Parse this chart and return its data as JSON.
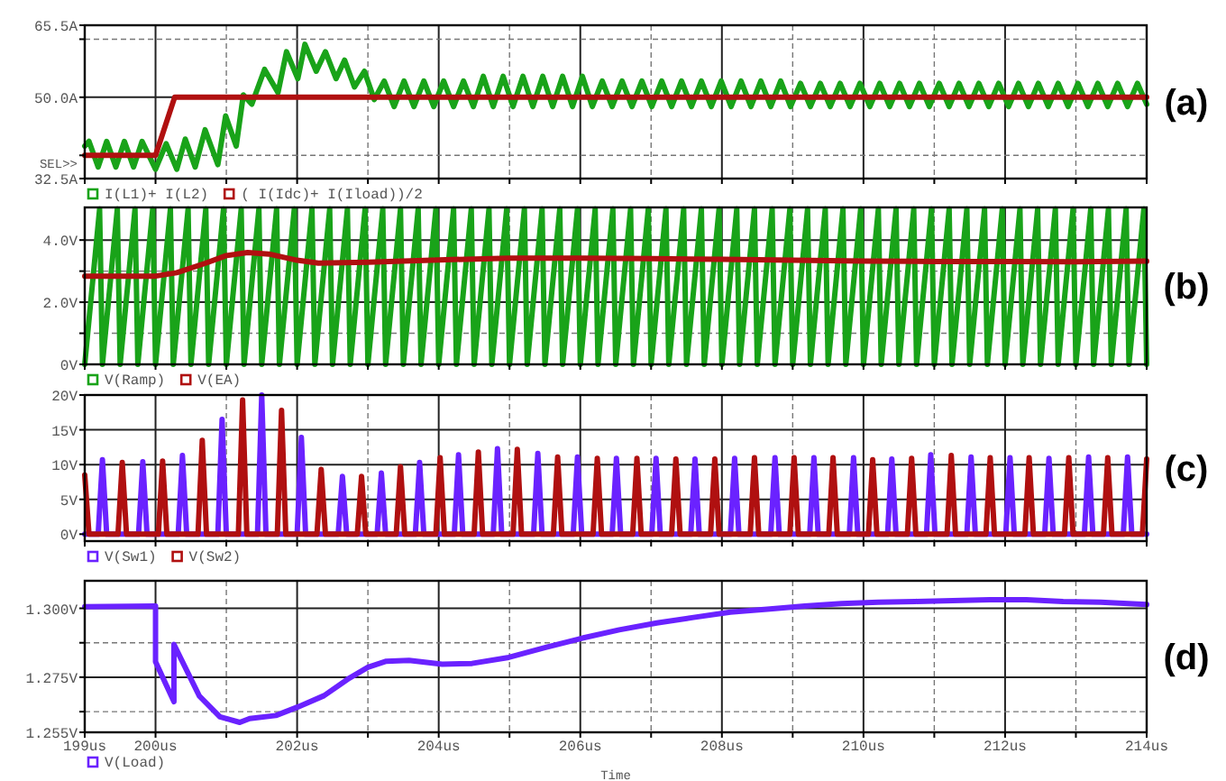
{
  "chart_data": [
    {
      "type": "line",
      "xlim": [
        199,
        214
      ],
      "ylim": [
        32.5,
        65.5
      ],
      "grid": true,
      "legend": "bottom",
      "tick_labels": "y",
      "xticks": [
        {
          "value": 199,
          "label": null
        },
        {
          "value": 200,
          "label": null
        },
        {
          "value": 201,
          "label": null
        },
        {
          "value": 202,
          "label": null
        },
        {
          "value": 203,
          "label": null
        },
        {
          "value": 204,
          "label": null
        },
        {
          "value": 205,
          "label": null
        },
        {
          "value": 206,
          "label": null
        },
        {
          "value": 207,
          "label": null
        },
        {
          "value": 208,
          "label": null
        },
        {
          "value": 209,
          "label": null
        },
        {
          "value": 210,
          "label": null
        },
        {
          "value": 211,
          "label": null
        },
        {
          "value": 212,
          "label": null
        },
        {
          "value": 213,
          "label": null
        },
        {
          "value": 214,
          "label": null
        }
      ],
      "yticks": [
        {
          "value": 32.5,
          "label": "32.5A"
        },
        {
          "value": 37.5,
          "label": null
        },
        {
          "value": 50,
          "label": "50.0A"
        },
        {
          "value": 62.5,
          "label": null
        },
        {
          "value": 65.5,
          "label": "65.5A"
        }
      ],
      "annotations": [
        "(a)",
        "SEL>>"
      ],
      "series": [
        {
          "name": "I(L1)+ I(L2)",
          "color": "#19a319",
          "x": [
            199,
            199.06,
            199.19,
            199.31,
            199.44,
            199.56,
            199.69,
            199.81,
            200,
            200.15,
            200.3,
            200.42,
            200.56,
            200.7,
            200.88,
            200.99,
            201.14,
            201.24,
            201.36,
            201.54,
            201.73,
            201.85,
            202.01,
            202.11,
            202.27,
            202.4,
            202.55,
            202.67,
            202.81,
            202.95,
            203.09,
            203.23,
            203.37,
            203.51,
            203.65,
            203.79,
            203.93,
            204.07,
            204.21,
            204.35,
            204.49,
            204.63,
            204.77,
            204.91,
            205.05,
            205.19,
            205.33,
            205.47,
            205.61,
            205.75,
            205.89,
            206.03,
            206.17,
            206.31,
            206.45,
            206.59,
            206.73,
            206.87,
            207.01,
            207.15,
            207.29,
            207.43,
            207.57,
            207.71,
            207.85,
            207.99,
            208.13,
            208.27,
            208.41,
            208.55,
            208.69,
            208.83,
            208.97,
            209.11,
            209.25,
            209.39,
            209.53,
            209.67,
            209.81,
            209.95,
            210.09,
            210.23,
            210.37,
            210.51,
            210.65,
            210.79,
            210.93,
            211.07,
            211.21,
            211.35,
            211.49,
            211.63,
            211.77,
            211.91,
            212.05,
            212.19,
            212.33,
            212.47,
            212.61,
            212.75,
            212.89,
            213.03,
            213.17,
            213.31,
            213.45,
            213.59,
            213.73,
            213.87,
            214
          ],
          "values": [
            39.5,
            40.5,
            35,
            40.5,
            35,
            40.5,
            35,
            40.5,
            34.5,
            40,
            34.5,
            41,
            35,
            43,
            35.5,
            46,
            39.5,
            50.5,
            48.5,
            56,
            51,
            59.8,
            54,
            61.4,
            55.6,
            59.8,
            54,
            58,
            52.2,
            55.6,
            49.5,
            53.5,
            48,
            53.5,
            48,
            53.5,
            48,
            53.5,
            48,
            53.5,
            48,
            54.5,
            48,
            54.5,
            48,
            54.5,
            48,
            54.5,
            48,
            54.5,
            48,
            54.5,
            48,
            53.5,
            48,
            53.5,
            48,
            53.5,
            48,
            53.5,
            48,
            53.5,
            48,
            53.5,
            48,
            53.5,
            48,
            53.5,
            48,
            53.5,
            48,
            53.5,
            48,
            53,
            48,
            53,
            48,
            53,
            48,
            53,
            48,
            53,
            48,
            53,
            48,
            53,
            48,
            53,
            48,
            53,
            48,
            53,
            48,
            53,
            48,
            53,
            48,
            53,
            48,
            53,
            48,
            53,
            48,
            53,
            48,
            53,
            48,
            53,
            48.5
          ]
        },
        {
          "name": "( I(Idc)+ I(Iload))/2",
          "color": "#b01010",
          "x": [
            199,
            200,
            200.27,
            214
          ],
          "values": [
            37.5,
            37.5,
            50,
            50
          ]
        }
      ]
    },
    {
      "type": "line",
      "xlim": [
        199,
        214
      ],
      "ylim": [
        0,
        5.05
      ],
      "grid": true,
      "legend": "bottom",
      "tick_labels": "y",
      "xticks": [
        {
          "value": 199,
          "label": null
        },
        {
          "value": 200,
          "label": null
        },
        {
          "value": 201,
          "label": null
        },
        {
          "value": 202,
          "label": null
        },
        {
          "value": 203,
          "label": null
        },
        {
          "value": 204,
          "label": null
        },
        {
          "value": 205,
          "label": null
        },
        {
          "value": 206,
          "label": null
        },
        {
          "value": 207,
          "label": null
        },
        {
          "value": 208,
          "label": null
        },
        {
          "value": 209,
          "label": null
        },
        {
          "value": 210,
          "label": null
        },
        {
          "value": 211,
          "label": null
        },
        {
          "value": 212,
          "label": null
        },
        {
          "value": 213,
          "label": null
        },
        {
          "value": 214,
          "label": null
        }
      ],
      "yticks": [
        {
          "value": 0,
          "label": "0V"
        },
        {
          "value": 1,
          "label": null
        },
        {
          "value": 2,
          "label": "2.0V"
        },
        {
          "value": 3,
          "label": null
        },
        {
          "value": 4,
          "label": "4.0V"
        }
      ],
      "annotations": [
        "(b)"
      ],
      "series": [
        {
          "name": "V(Ramp)",
          "color": "#19a319",
          "x": [
            199,
            199.21,
            199.25,
            199.46,
            199.5,
            199.71,
            199.75,
            199.96,
            200,
            200.21,
            200.25,
            200.46,
            200.5,
            200.71,
            200.75,
            200.96,
            201,
            201.21,
            201.25,
            201.46,
            201.5,
            201.71,
            201.75,
            201.96,
            202,
            202.21,
            202.25,
            202.46,
            202.5,
            202.71,
            202.75,
            202.96,
            203,
            203.21,
            203.25,
            203.46,
            203.5,
            203.71,
            203.75,
            203.96,
            204,
            204.21,
            204.25,
            204.46,
            204.5,
            204.71,
            204.75,
            204.96,
            205,
            205.21,
            205.25,
            205.46,
            205.5,
            205.71,
            205.75,
            205.96,
            206,
            206.21,
            206.25,
            206.46,
            206.5,
            206.71,
            206.75,
            206.96,
            207,
            207.21,
            207.25,
            207.46,
            207.5,
            207.71,
            207.75,
            207.96,
            208,
            208.21,
            208.25,
            208.46,
            208.5,
            208.71,
            208.75,
            208.96,
            209,
            209.21,
            209.25,
            209.46,
            209.5,
            209.71,
            209.75,
            209.96,
            210,
            210.21,
            210.25,
            210.46,
            210.5,
            210.71,
            210.75,
            210.96,
            211,
            211.21,
            211.25,
            211.46,
            211.5,
            211.71,
            211.75,
            211.96,
            212,
            212.21,
            212.25,
            212.46,
            212.5,
            212.71,
            212.75,
            212.96,
            213,
            213.21,
            213.25,
            213.46,
            213.5,
            213.71,
            213.75,
            213.96,
            214
          ],
          "values": [
            0,
            5,
            0,
            5,
            0,
            5,
            0,
            5,
            0,
            5,
            0,
            5,
            0,
            5,
            0,
            5,
            0,
            5,
            0,
            5,
            0,
            5,
            0,
            5,
            0,
            5,
            0,
            5,
            0,
            5,
            0,
            5,
            0,
            5,
            0,
            5,
            0,
            5,
            0,
            5,
            0,
            5,
            0,
            5,
            0,
            5,
            0,
            5,
            0,
            5,
            0,
            5,
            0,
            5,
            0,
            5,
            0,
            5,
            0,
            5,
            0,
            5,
            0,
            5,
            0,
            5,
            0,
            5,
            0,
            5,
            0,
            5,
            0,
            5,
            0,
            5,
            0,
            5,
            0,
            5,
            0,
            5,
            0,
            5,
            0,
            5,
            0,
            5,
            0,
            5,
            0,
            5,
            0,
            5,
            0,
            5,
            0,
            5,
            0,
            5,
            0,
            5,
            0,
            5,
            0,
            5,
            0,
            5,
            0,
            5,
            0,
            5,
            0,
            5,
            0,
            5,
            0,
            5,
            0,
            5,
            0
          ]
        },
        {
          "name": "V(EA)",
          "color": "#b01010",
          "x": [
            199,
            200,
            200.3,
            200.7,
            201,
            201.3,
            201.6,
            202,
            202.3,
            203,
            204,
            205,
            206,
            207,
            208,
            209,
            210,
            211,
            212,
            213,
            214
          ],
          "values": [
            2.84,
            2.84,
            2.95,
            3.25,
            3.5,
            3.6,
            3.55,
            3.35,
            3.26,
            3.29,
            3.36,
            3.42,
            3.42,
            3.4,
            3.38,
            3.35,
            3.32,
            3.31,
            3.31,
            3.3,
            3.32
          ]
        }
      ]
    },
    {
      "type": "line",
      "xlim": [
        199,
        214
      ],
      "ylim": [
        -1,
        20
      ],
      "grid": true,
      "legend": "bottom",
      "tick_labels": "y",
      "xticks": [
        {
          "value": 199,
          "label": null
        },
        {
          "value": 200,
          "label": null
        },
        {
          "value": 201,
          "label": null
        },
        {
          "value": 202,
          "label": null
        },
        {
          "value": 203,
          "label": null
        },
        {
          "value": 204,
          "label": null
        },
        {
          "value": 205,
          "label": null
        },
        {
          "value": 206,
          "label": null
        },
        {
          "value": 207,
          "label": null
        },
        {
          "value": 208,
          "label": null
        },
        {
          "value": 209,
          "label": null
        },
        {
          "value": 210,
          "label": null
        },
        {
          "value": 211,
          "label": null
        },
        {
          "value": 212,
          "label": null
        },
        {
          "value": 213,
          "label": null
        },
        {
          "value": 214,
          "label": null
        }
      ],
      "yticks": [
        {
          "value": 0,
          "label": "0V"
        },
        {
          "value": 5,
          "label": "5V"
        },
        {
          "value": 10,
          "label": "10V"
        },
        {
          "value": 15,
          "label": "15V"
        },
        {
          "value": 20,
          "label": "20V"
        }
      ],
      "annotations": [
        "(c)"
      ],
      "series": [
        {
          "name": "V(Sw1)",
          "color": "#6a22ff",
          "x": [
            199,
            199.19,
            199.25,
            199.31,
            199.76,
            199.82,
            199.88,
            200.32,
            200.38,
            200.44,
            200.88,
            200.94,
            201,
            201.44,
            201.5,
            201.56,
            202,
            202.06,
            202.12,
            202.58,
            202.64,
            202.7,
            203.13,
            203.19,
            203.25,
            203.67,
            203.73,
            203.79,
            204.22,
            204.28,
            204.34,
            204.77,
            204.83,
            204.89,
            205.34,
            205.4,
            205.46,
            205.9,
            205.96,
            206.02,
            206.45,
            206.51,
            206.57,
            207.01,
            207.07,
            207.13,
            207.56,
            207.62,
            207.68,
            208.12,
            208.18,
            208.24,
            208.69,
            208.75,
            208.81,
            209.24,
            209.3,
            209.36,
            209.8,
            209.86,
            209.92,
            210.34,
            210.4,
            210.46,
            210.89,
            210.95,
            211.01,
            211.46,
            211.52,
            211.58,
            212.01,
            212.07,
            212.13,
            212.56,
            212.62,
            212.68,
            213.12,
            213.18,
            213.24,
            213.67,
            213.73,
            213.79,
            214
          ],
          "values": [
            0,
            0,
            10.7,
            0,
            0,
            10.4,
            0,
            0,
            11.3,
            0,
            0,
            16.5,
            0,
            0,
            20,
            0,
            0,
            13.9,
            0,
            0,
            8.3,
            0,
            0,
            8.8,
            0,
            0,
            10.3,
            0,
            0,
            11.4,
            0,
            0,
            12.3,
            0,
            0,
            11.6,
            0,
            0,
            11.1,
            0,
            0,
            10.9,
            0,
            0,
            10.9,
            0,
            0,
            10.8,
            0,
            0,
            10.9,
            0,
            0,
            11,
            0,
            0,
            11,
            0,
            0,
            11,
            0,
            0,
            10.8,
            0,
            0,
            11.4,
            0,
            0,
            11.1,
            0,
            0,
            11,
            0,
            0,
            10.9,
            0,
            0,
            11.1,
            0,
            0,
            11.1,
            0,
            0
          ]
        },
        {
          "name": "V(Sw2)",
          "color": "#b01010",
          "x": [
            199,
            199.06,
            199.47,
            199.53,
            199.59,
            200.04,
            200.1,
            200.16,
            200.6,
            200.66,
            200.72,
            201.17,
            201.23,
            201.29,
            201.72,
            201.78,
            201.84,
            202.28,
            202.34,
            202.4,
            202.85,
            202.91,
            202.97,
            203.4,
            203.46,
            203.52,
            203.96,
            204.02,
            204.08,
            204.5,
            204.56,
            204.62,
            205.05,
            205.11,
            205.17,
            205.62,
            205.68,
            205.74,
            206.18,
            206.24,
            206.3,
            206.74,
            206.8,
            206.86,
            207.29,
            207.35,
            207.41,
            207.84,
            207.9,
            207.96,
            208.4,
            208.46,
            208.52,
            208.96,
            209.02,
            209.08,
            209.51,
            209.57,
            209.63,
            210.07,
            210.13,
            210.19,
            210.62,
            210.68,
            210.74,
            211.18,
            211.24,
            211.3,
            211.73,
            211.79,
            211.85,
            212.28,
            212.34,
            212.4,
            212.84,
            212.9,
            212.96,
            213.39,
            213.45,
            213.51,
            213.94,
            214
          ],
          "values": [
            8.5,
            0,
            0,
            10.3,
            0,
            0,
            10.5,
            0,
            0,
            13.5,
            0,
            0,
            19.3,
            0,
            0,
            17.8,
            0,
            0,
            9.3,
            0,
            0,
            8.3,
            0,
            0,
            9.7,
            0,
            0,
            11,
            0,
            0,
            11.8,
            0,
            0,
            12.2,
            0,
            0,
            11.1,
            0,
            0,
            10.9,
            0,
            0,
            10.9,
            0,
            0,
            10.8,
            0,
            0,
            10.8,
            0,
            0,
            11,
            0,
            0,
            11,
            0,
            0,
            11,
            0,
            0,
            10.7,
            0,
            0,
            10.9,
            0,
            0,
            11.3,
            0,
            0,
            11,
            0,
            0,
            11,
            0,
            0,
            11,
            0,
            0,
            11,
            0,
            0,
            10.8
          ]
        }
      ]
    },
    {
      "type": "line",
      "xlim": [
        199,
        214
      ],
      "ylim": [
        1.255,
        1.31
      ],
      "grid": true,
      "legend": "bottom",
      "xlabel": "Time",
      "xticks": [
        {
          "value": 199,
          "label": "199us"
        },
        {
          "value": 200,
          "label": "200us"
        },
        {
          "value": 201,
          "label": null
        },
        {
          "value": 202,
          "label": "202us"
        },
        {
          "value": 203,
          "label": null
        },
        {
          "value": 204,
          "label": "204us"
        },
        {
          "value": 205,
          "label": null
        },
        {
          "value": 206,
          "label": "206us"
        },
        {
          "value": 207,
          "label": null
        },
        {
          "value": 208,
          "label": "208us"
        },
        {
          "value": 209,
          "label": null
        },
        {
          "value": 210,
          "label": "210us"
        },
        {
          "value": 211,
          "label": null
        },
        {
          "value": 212,
          "label": "212us"
        },
        {
          "value": 213,
          "label": null
        },
        {
          "value": 214,
          "label": "214us"
        }
      ],
      "yticks": [
        {
          "value": 1.255,
          "label": "1.255V"
        },
        {
          "value": 1.2625,
          "label": null
        },
        {
          "value": 1.275,
          "label": "1.275V"
        },
        {
          "value": 1.2875,
          "label": null
        },
        {
          "value": 1.3,
          "label": "1.300V"
        }
      ],
      "annotations": [
        "(d)"
      ],
      "series": [
        {
          "name": "V(Load)",
          "color": "#6a22ff",
          "x": [
            199,
            200,
            200,
            200.26,
            200.26,
            200.62,
            200.91,
            201.19,
            201.33,
            201.7,
            202.01,
            202.38,
            202.74,
            203,
            203.26,
            203.58,
            204.05,
            204.47,
            204.99,
            205.51,
            206.03,
            206.55,
            207.08,
            207.6,
            208.12,
            208.64,
            209.17,
            209.69,
            210.21,
            210.73,
            211.26,
            211.78,
            212.3,
            212.82,
            213.35,
            214
          ],
          "values": [
            1.3006,
            1.3008,
            1.2806,
            1.2661,
            1.2869,
            1.2681,
            1.2606,
            1.2586,
            1.26,
            1.2611,
            1.2642,
            1.2683,
            1.2747,
            1.2786,
            1.2808,
            1.2811,
            1.2797,
            1.28,
            1.2822,
            1.2858,
            1.2892,
            1.2922,
            1.2947,
            1.2967,
            1.2986,
            1.2997,
            1.3008,
            1.3017,
            1.3022,
            1.3025,
            1.3028,
            1.3031,
            1.3031,
            1.3025,
            1.3022,
            1.3014
          ]
        }
      ]
    }
  ]
}
